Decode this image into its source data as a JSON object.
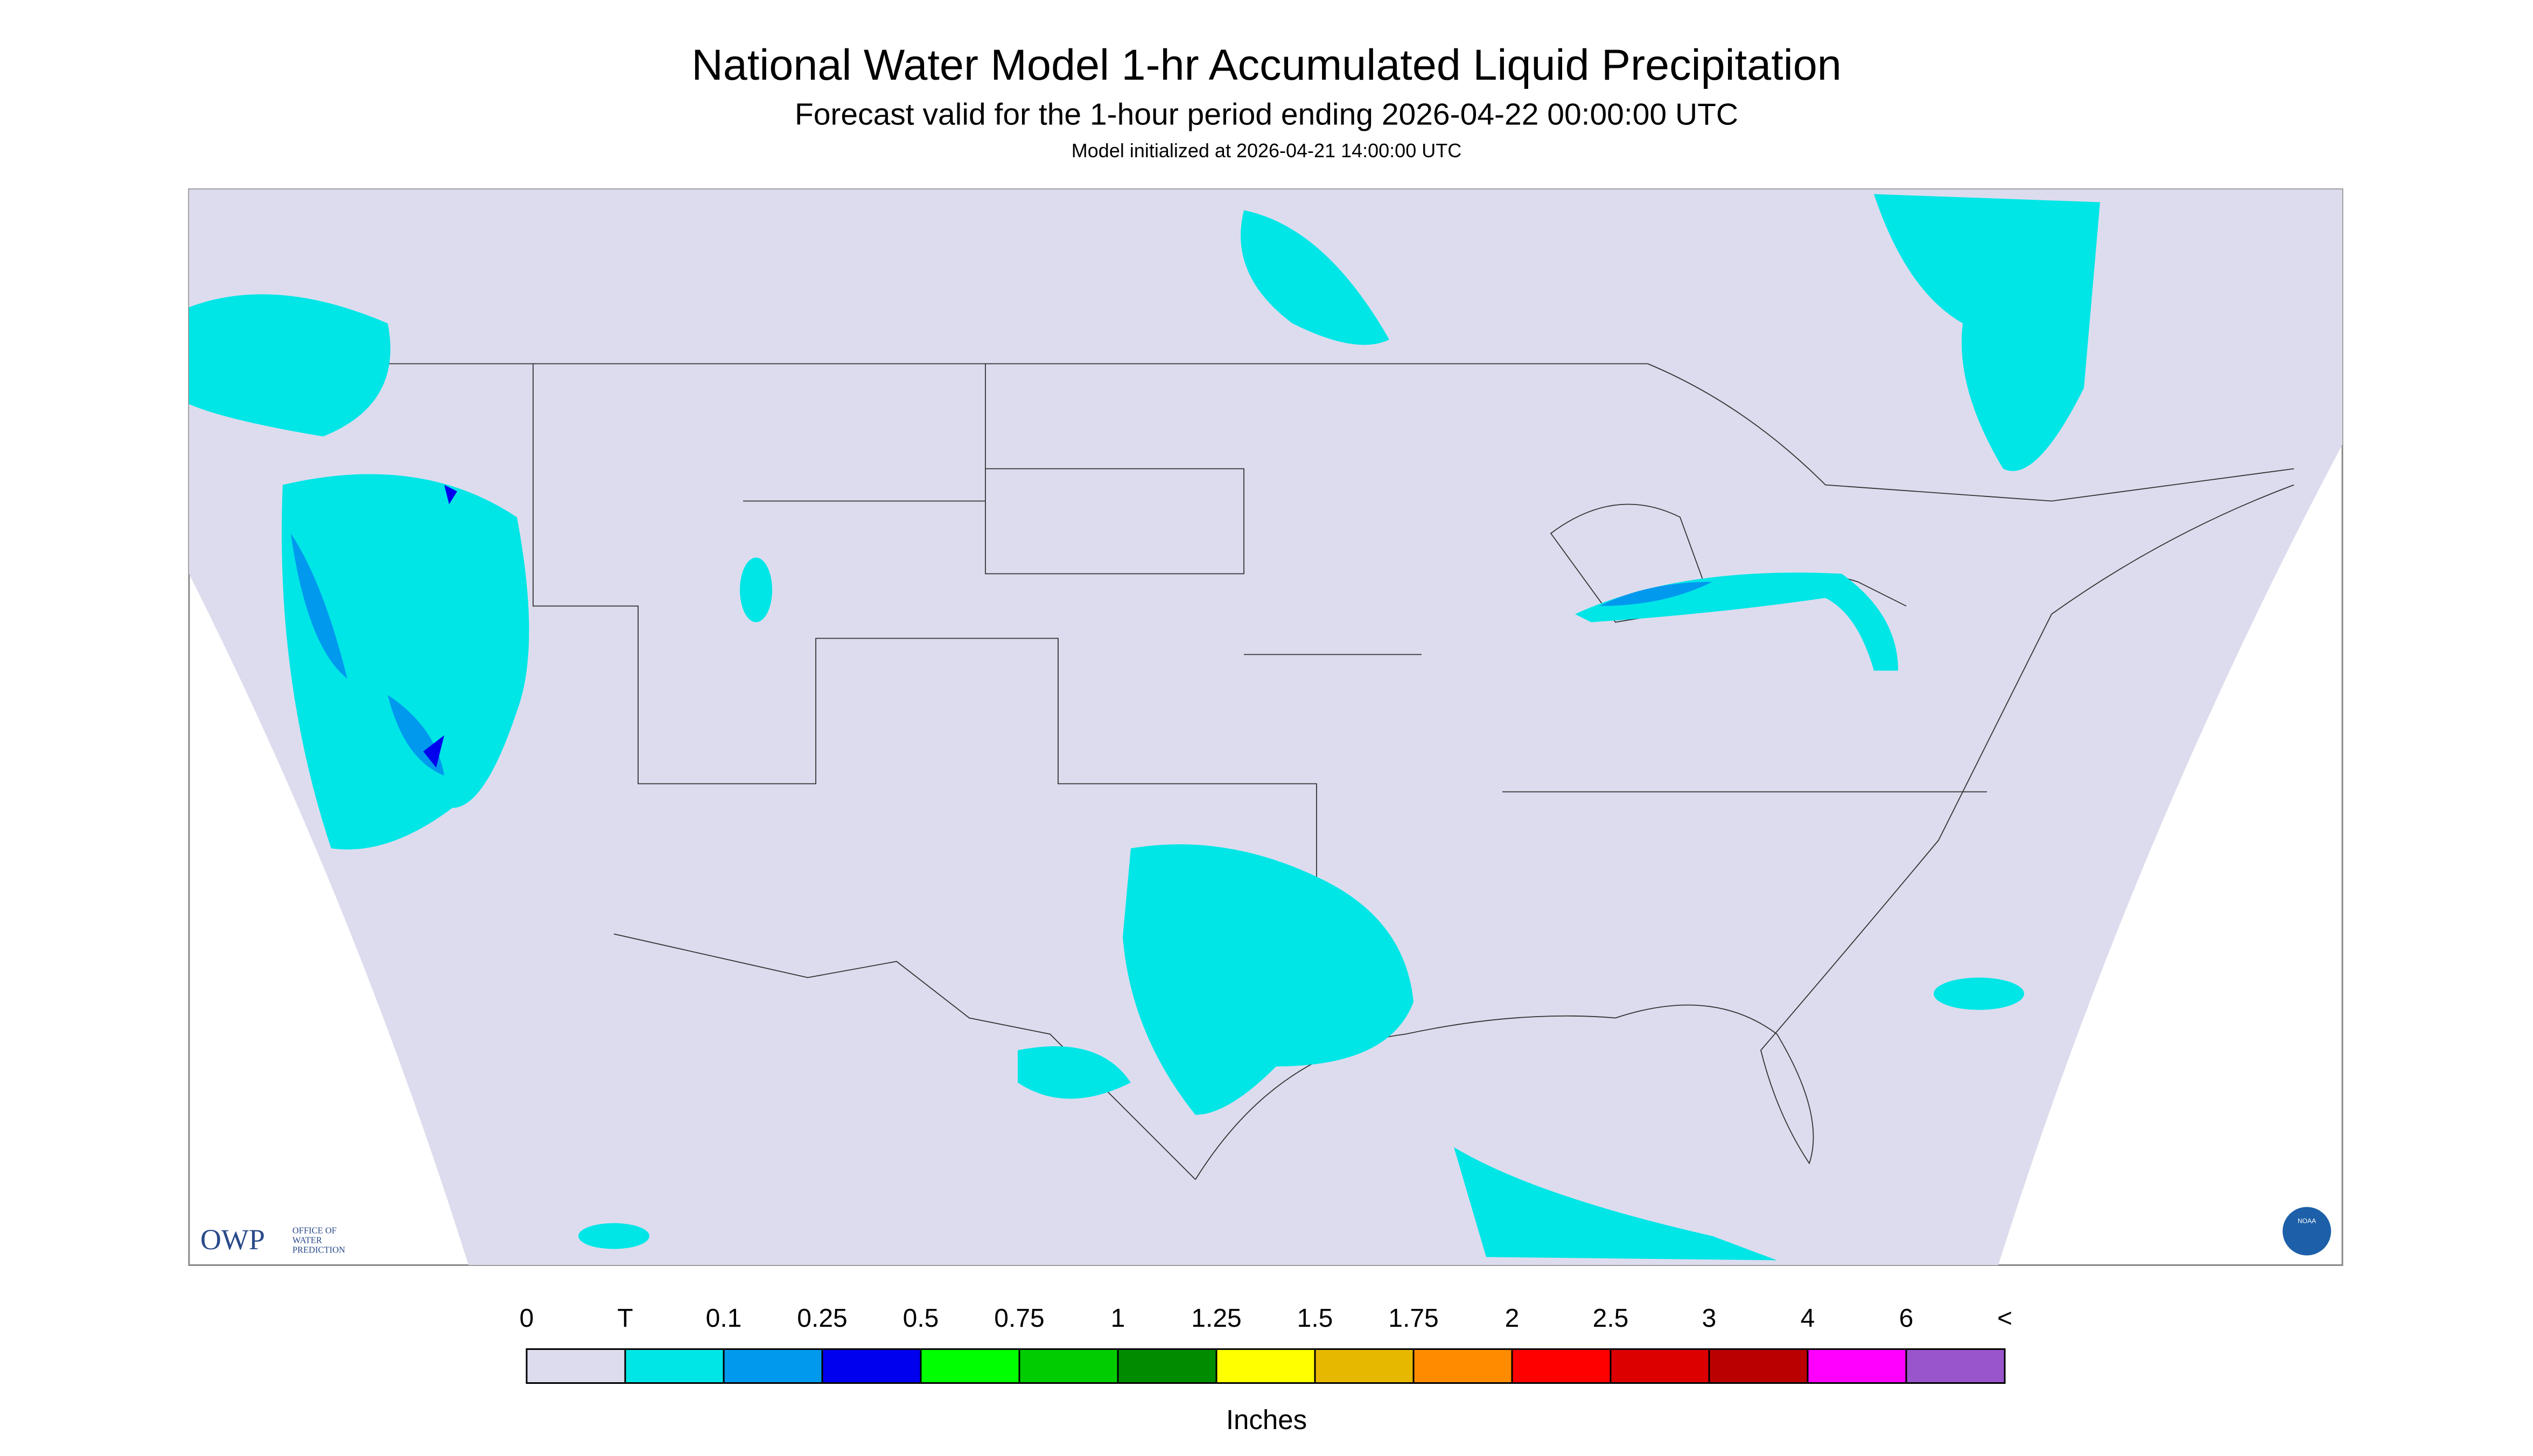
{
  "header": {
    "title": "National Water Model 1-hr Accumulated Liquid Precipitation",
    "subtitle": "Forecast valid for the 1-hour period ending 2026-04-22 00:00:00 UTC",
    "init": "Model initialized at 2026-04-21 14:00:00 UTC"
  },
  "legend": {
    "labels": [
      "0",
      "T",
      "0.1",
      "0.25",
      "0.5",
      "0.75",
      "1",
      "1.25",
      "1.5",
      "1.75",
      "2",
      "2.5",
      "3",
      "4",
      "6",
      "<"
    ],
    "colors": [
      "#dcdcee",
      "#00e6e6",
      "#0099ee",
      "#0000ee",
      "#00ff00",
      "#00cc00",
      "#008c00",
      "#ffff00",
      "#e6b800",
      "#ff8c00",
      "#ff0000",
      "#dd0000",
      "#bb0000",
      "#ff00ff",
      "#9955cc"
    ],
    "unit": "Inches"
  },
  "logos": {
    "owp": "OWP",
    "owp_name": [
      "OFFICE OF",
      "WATER",
      "PREDICTION"
    ],
    "noaa": "NOAA"
  }
}
